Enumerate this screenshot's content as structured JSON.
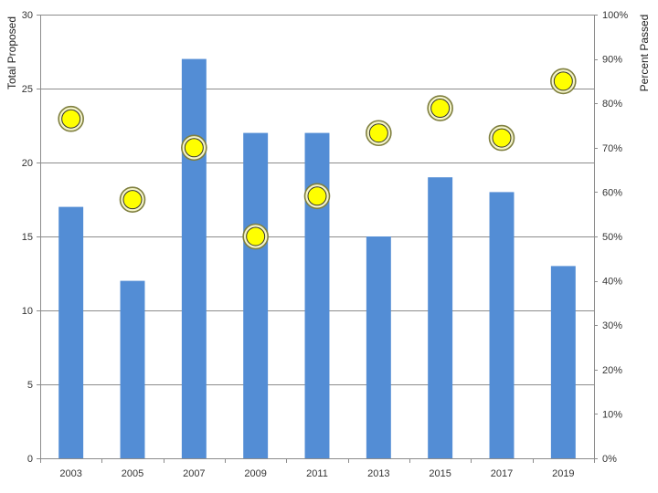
{
  "chart_data": {
    "type": "bar",
    "categories": [
      "2003",
      "2005",
      "2007",
      "2009",
      "2011",
      "2013",
      "2015",
      "2017",
      "2019"
    ],
    "series": [
      {
        "type": "bar",
        "axis": "left",
        "values": [
          17,
          12,
          27,
          22,
          22,
          15,
          19,
          18,
          13
        ],
        "color": "#538dd5"
      },
      {
        "type": "scatter",
        "axis": "right",
        "values": [
          0.765,
          0.583,
          0.7,
          0.5,
          0.591,
          0.733,
          0.789,
          0.722,
          0.85
        ],
        "color": "#ffff00",
        "outline": "#7f7f3f"
      }
    ],
    "ylabel": "Total Proposed",
    "y2label": "Percent Passed",
    "ylim": [
      0,
      30
    ],
    "y_ticks": [
      "0",
      "5",
      "10",
      "15",
      "20",
      "25",
      "30"
    ],
    "y2lim": [
      0,
      1
    ],
    "y2_ticks": [
      "0%",
      "10%",
      "20%",
      "30%",
      "40%",
      "50%",
      "60%",
      "70%",
      "80%",
      "90%",
      "100%"
    ],
    "grid": true
  }
}
